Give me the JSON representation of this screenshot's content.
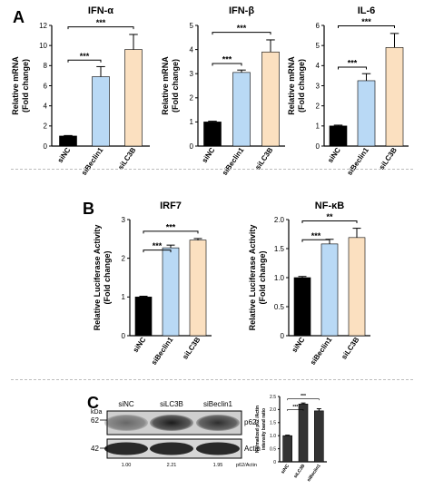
{
  "panels": {
    "A": "A",
    "B": "B",
    "C": "C"
  },
  "colors": {
    "siNC": "#000000",
    "siBeclin1": "#b9d9f5",
    "siLC3B": "#fbe0c0",
    "grey_bar": "#333333",
    "axis": "#000000"
  },
  "significance": "***",
  "chart_data": [
    {
      "type": "bar",
      "title": "IFN-α",
      "ylabel": [
        "Relative mRNA",
        "(Fold change)"
      ],
      "categories": [
        "siNC",
        "siBeclin1",
        "siLC3B"
      ],
      "values": [
        1.0,
        6.9,
        9.6
      ],
      "errors": [
        0.05,
        1.0,
        1.5
      ],
      "ylim": [
        0,
        12
      ],
      "yticks": [
        "0",
        "2",
        "4",
        "6",
        "8",
        "10",
        "12"
      ],
      "significance": [
        {
          "from": 0,
          "to": 1,
          "label": "***"
        },
        {
          "from": 0,
          "to": 2,
          "label": "***"
        }
      ]
    },
    {
      "type": "bar",
      "title": "IFN-β",
      "ylabel": [
        "Relative mRNA",
        "(Fold change)"
      ],
      "categories": [
        "siNC",
        "siBeclin1",
        "siLC3B"
      ],
      "values": [
        1.0,
        3.05,
        3.9
      ],
      "errors": [
        0.03,
        0.1,
        0.5
      ],
      "ylim": [
        0,
        5
      ],
      "yticks": [
        "0",
        "1",
        "2",
        "3",
        "4",
        "5"
      ],
      "significance": [
        {
          "from": 0,
          "to": 1,
          "label": "***"
        },
        {
          "from": 0,
          "to": 2,
          "label": "***"
        }
      ]
    },
    {
      "type": "bar",
      "title": "IL-6",
      "ylabel": [
        "Relative mRNA",
        "(Fold change)"
      ],
      "categories": [
        "siNC",
        "siBeclin1",
        "siLC3B"
      ],
      "values": [
        1.0,
        3.25,
        4.9
      ],
      "errors": [
        0.04,
        0.35,
        0.7
      ],
      "ylim": [
        0,
        6
      ],
      "yticks": [
        "0",
        "1",
        "2",
        "3",
        "4",
        "5",
        "6"
      ],
      "significance": [
        {
          "from": 0,
          "to": 1,
          "label": "***"
        },
        {
          "from": 0,
          "to": 2,
          "label": "***"
        }
      ]
    },
    {
      "type": "bar",
      "title": "IRF7",
      "ylabel": [
        "Relative Luciferase Activity",
        "(Fold change)"
      ],
      "categories": [
        "siNC",
        "siBeclin1",
        "siLC3B"
      ],
      "values": [
        1.0,
        2.27,
        2.47
      ],
      "errors": [
        0.02,
        0.07,
        0.04
      ],
      "ylim": [
        0,
        3
      ],
      "yticks": [
        "0",
        "1",
        "2",
        "3"
      ],
      "significance": [
        {
          "from": 0,
          "to": 1,
          "label": "***"
        },
        {
          "from": 0,
          "to": 2,
          "label": "***"
        }
      ]
    },
    {
      "type": "bar",
      "title": "NF-κB",
      "ylabel": [
        "Relative Luciferase Activity",
        "(Fold change)"
      ],
      "categories": [
        "siNC",
        "siBeclin1",
        "siLC3B"
      ],
      "values": [
        1.0,
        1.58,
        1.69
      ],
      "errors": [
        0.02,
        0.08,
        0.16
      ],
      "ylim": [
        0,
        2.0
      ],
      "yticks": [
        "0",
        "0.5",
        "1.0",
        "1.5",
        "2.0"
      ],
      "significance": [
        {
          "from": 0,
          "to": 1,
          "label": "***"
        },
        {
          "from": 0,
          "to": 2,
          "label": "**"
        }
      ]
    },
    {
      "type": "bar",
      "title": "",
      "ylabel": [
        "Normalized p62 /Actin",
        "intensity band ratio"
      ],
      "categories": [
        "siNC",
        "siLC3B",
        "siBeclin1"
      ],
      "values": [
        1.0,
        2.21,
        1.95
      ],
      "errors": [
        0.02,
        0.04,
        0.08
      ],
      "ylim": [
        0,
        2.5
      ],
      "yticks": [
        "0",
        "0.5",
        "1.0",
        "1.5",
        "2.0",
        "2.5"
      ],
      "significance": [
        {
          "from": 0,
          "to": 1,
          "label": "***"
        },
        {
          "from": 0,
          "to": 2,
          "label": "***"
        }
      ]
    }
  ],
  "western_blot": {
    "lanes": [
      "siNC",
      "siLC3B",
      "siBeclin1"
    ],
    "kda_label": "kDa",
    "markers": [
      "62",
      "42"
    ],
    "bands": [
      "p62",
      "Actin"
    ],
    "ratios": [
      "1.00",
      "2.21",
      "1.95"
    ],
    "ratio_label": "p62/Actin",
    "p62_intensity": [
      0.55,
      0.95,
      0.85
    ]
  }
}
